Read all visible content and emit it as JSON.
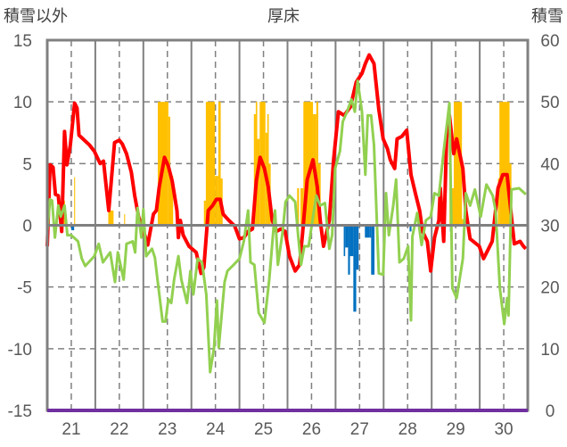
{
  "chart_data": {
    "type": "line",
    "title": "厚床",
    "ylabel": "積雪以外",
    "y2label": "積雪",
    "ylim": [
      -15,
      15
    ],
    "y2lim": [
      0,
      60
    ],
    "xlim": [
      21,
      31
    ],
    "yticks": [
      "15",
      "10",
      "5",
      "0",
      "-5",
      "-10",
      "-15"
    ],
    "y2ticks": [
      "60",
      "50",
      "40",
      "30",
      "20",
      "10",
      "0"
    ],
    "xticks": [
      "21",
      "22",
      "23",
      "24",
      "25",
      "26",
      "27",
      "28",
      "29",
      "30"
    ],
    "grid": true,
    "colors": {
      "red": "#FF0000",
      "green": "#92D050",
      "orange": "#FFC000",
      "blue": "#0070C0",
      "purple": "#7030A0",
      "grid": "#808080"
    },
    "series": [
      {
        "name": "red",
        "axis": "left",
        "color": "#FF0000",
        "x": [
          21.0,
          21.06,
          21.12,
          21.17,
          21.23,
          21.3,
          21.36,
          21.41,
          21.48,
          21.57,
          21.62,
          21.66,
          21.88,
          21.98,
          22.1,
          22.17,
          22.28,
          22.4,
          22.5,
          22.56,
          22.65,
          22.75,
          22.82,
          22.9,
          23.03,
          23.09,
          23.21,
          23.27,
          23.33,
          23.44,
          23.52,
          23.6,
          23.7,
          23.73,
          23.77,
          23.83,
          23.95,
          24.1,
          24.2,
          24.26,
          24.35,
          24.44,
          24.52,
          24.6,
          24.66,
          24.78,
          24.9,
          25.0,
          25.09,
          25.18,
          25.27,
          25.35,
          25.43,
          25.52,
          25.6,
          25.68,
          25.77,
          25.86,
          25.95,
          26.04,
          26.16,
          26.25,
          26.31,
          26.41,
          26.53,
          26.62,
          26.68,
          26.75,
          26.87,
          26.96,
          27.06,
          27.18,
          27.31,
          27.43,
          27.55,
          27.62,
          27.7,
          27.8,
          27.9,
          27.99,
          28.08,
          28.14,
          28.23,
          28.28,
          28.38,
          28.48,
          28.57,
          28.66,
          28.75,
          28.81,
          28.91,
          28.98,
          29.06,
          29.15,
          29.18,
          29.25,
          29.31,
          29.37,
          29.46,
          29.52,
          29.65,
          29.71,
          29.8,
          29.99,
          30.08,
          30.17,
          30.26,
          30.38,
          30.48,
          30.57,
          30.66,
          30.72,
          30.84,
          30.91,
          30.96
        ],
        "y": [
          -1.7,
          4.9,
          4.7,
          2.5,
          2.4,
          -0.5,
          7.6,
          4.9,
          6.5,
          9.9,
          9.5,
          7.3,
          6.5,
          6.0,
          5.0,
          5.2,
          1.2,
          6.7,
          6.9,
          6.6,
          5.8,
          4.3,
          2.4,
          0.7,
          -0.8,
          -1.6,
          0.9,
          1.2,
          3.1,
          5.5,
          4.8,
          3.6,
          1.2,
          -1.0,
          0.4,
          -0.8,
          -1.7,
          -2.2,
          -3.9,
          -3.4,
          1.2,
          1.6,
          2.1,
          2.1,
          0.9,
          0.4,
          -0.05,
          -1.1,
          -1.0,
          -0.5,
          -0.3,
          3.6,
          5.5,
          4.6,
          3.1,
          0.4,
          -0.5,
          -0.3,
          -0.5,
          -2.5,
          -3.7,
          -3.2,
          -0.8,
          3.7,
          5.3,
          3.1,
          0.4,
          -1.7,
          0.4,
          5.3,
          9.2,
          8.9,
          9.6,
          11.6,
          12.3,
          13.1,
          13.8,
          13.1,
          9.4,
          7.0,
          6.2,
          5.3,
          4.6,
          7.0,
          7.2,
          7.7,
          4.1,
          2.6,
          1.2,
          -0.5,
          -1.3,
          -3.7,
          -1.0,
          0.4,
          3.0,
          -1.3,
          7.0,
          8.9,
          5.8,
          7.0,
          4.6,
          1.2,
          -1.1,
          -1.7,
          -2.7,
          -2.0,
          -1.3,
          3.0,
          4.1,
          4.1,
          0.7,
          -1.5,
          -1.3,
          -1.7,
          -1.9
        ]
      },
      {
        "name": "green",
        "axis": "left",
        "color": "#92D050",
        "x": [
          21.0,
          21.06,
          21.1,
          21.16,
          21.23,
          21.28,
          21.36,
          21.42,
          21.5,
          21.64,
          21.72,
          21.79,
          21.98,
          22.07,
          22.16,
          22.31,
          22.41,
          22.47,
          22.59,
          22.65,
          22.78,
          22.83,
          22.88,
          22.96,
          23.0,
          23.06,
          23.18,
          23.24,
          23.3,
          23.4,
          23.46,
          23.52,
          23.58,
          23.64,
          23.73,
          23.79,
          23.91,
          23.98,
          24.04,
          24.13,
          24.22,
          24.31,
          24.39,
          24.47,
          24.53,
          24.57,
          24.69,
          24.75,
          24.88,
          25.0,
          25.09,
          25.18,
          25.23,
          25.31,
          25.4,
          25.52,
          25.62,
          25.74,
          25.8,
          25.9,
          25.96,
          26.04,
          26.16,
          26.22,
          26.28,
          26.35,
          26.44,
          26.53,
          26.6,
          26.68,
          26.78,
          26.87,
          26.93,
          26.99,
          27.09,
          27.15,
          27.24,
          27.33,
          27.4,
          27.46,
          27.55,
          27.62,
          27.67,
          27.74,
          27.8,
          27.9,
          27.99,
          28.05,
          28.11,
          28.2,
          28.26,
          28.33,
          28.42,
          28.51,
          28.57,
          28.6,
          28.7,
          28.79,
          28.88,
          28.98,
          29.06,
          29.15,
          29.25,
          29.37,
          29.43,
          29.52,
          29.65,
          29.71,
          29.8,
          29.9,
          30.02,
          30.14,
          30.27,
          30.33,
          30.42,
          30.51,
          30.57,
          30.6,
          30.66,
          30.82,
          30.96
        ],
        "y": [
          -0.5,
          2.1,
          2.0,
          -1.0,
          1.6,
          0.7,
          1.6,
          -0.8,
          -0.8,
          -1.3,
          -2.7,
          -3.3,
          -2.5,
          -1.5,
          -3.0,
          -2.2,
          -4.6,
          -2.2,
          -4.4,
          -1.5,
          -1.3,
          -2.2,
          1.4,
          -1.0,
          1.3,
          -2.5,
          -1.9,
          -2.6,
          -4.6,
          -7.8,
          -7.8,
          -6.0,
          -6.3,
          -4.4,
          -2.5,
          -4.4,
          -6.3,
          -3.7,
          -5.6,
          -2.7,
          -3.0,
          -5.6,
          -11.9,
          -10.0,
          -6.1,
          -9.9,
          -4.6,
          -3.7,
          -3.2,
          -2.7,
          -1.3,
          1.2,
          -3.0,
          -3.2,
          -7.1,
          -7.9,
          -4.4,
          1.2,
          -3.2,
          -0.5,
          1.9,
          2.4,
          1.9,
          -0.8,
          -3.2,
          -1.7,
          -1.7,
          0.7,
          2.4,
          1.6,
          1.8,
          -1.9,
          -0.8,
          4.6,
          6.0,
          8.4,
          9.2,
          10.2,
          9.2,
          11.7,
          9.2,
          4.1,
          8.9,
          8.9,
          6.5,
          -3.9,
          -4.0,
          2.6,
          -0.8,
          1.6,
          3.7,
          -3.0,
          -2.7,
          -1.7,
          -7.7,
          -0.9,
          1.0,
          -1.6,
          0.4,
          0.7,
          2.6,
          2.4,
          6.0,
          9.9,
          -5.1,
          -5.9,
          -2.7,
          2.6,
          1.6,
          2.9,
          0.7,
          3.3,
          2.4,
          1.2,
          -5.1,
          -8.0,
          -5.9,
          -7.3,
          2.9,
          3.0,
          2.5
        ]
      },
      {
        "name": "purple",
        "axis": "right",
        "color": "#7030A0",
        "x": [
          21,
          31
        ],
        "y": [
          0,
          0
        ]
      }
    ],
    "bars": [
      {
        "name": "orange",
        "axis": "left",
        "color": "#FFC000",
        "segments": [
          [
            21.33,
            21.37,
            2.0
          ],
          [
            21.56,
            21.58,
            3.9
          ],
          [
            22.27,
            22.38,
            1.2
          ],
          [
            22.6,
            22.62,
            0.9
          ],
          [
            23.3,
            23.52,
            10
          ],
          [
            23.52,
            23.56,
            8.8
          ],
          [
            23.56,
            23.62,
            4.0
          ],
          [
            24.26,
            24.3,
            2.0
          ],
          [
            24.3,
            24.49,
            10
          ],
          [
            24.49,
            24.56,
            4.0
          ],
          [
            24.56,
            24.61,
            10
          ],
          [
            24.61,
            24.65,
            3.8
          ],
          [
            25.3,
            25.34,
            9.0
          ],
          [
            25.34,
            25.37,
            10
          ],
          [
            25.37,
            25.42,
            7.0
          ],
          [
            25.42,
            25.54,
            10
          ],
          [
            25.54,
            25.58,
            7.5
          ],
          [
            25.58,
            25.61,
            9.0
          ],
          [
            25.61,
            25.65,
            5.0
          ],
          [
            26.2,
            26.24,
            3.0
          ],
          [
            26.27,
            26.33,
            3.0
          ],
          [
            26.33,
            26.53,
            10
          ],
          [
            26.53,
            26.6,
            9.0
          ],
          [
            26.6,
            26.64,
            10
          ],
          [
            26.64,
            26.69,
            5.0
          ],
          [
            29.37,
            29.46,
            3.0
          ],
          [
            29.46,
            29.63,
            10
          ],
          [
            29.63,
            29.68,
            0.5
          ],
          [
            30.38,
            30.41,
            3.8
          ],
          [
            30.41,
            30.62,
            10
          ],
          [
            30.62,
            30.66,
            5.0
          ]
        ]
      },
      {
        "name": "blue",
        "axis": "left",
        "color": "#0070C0",
        "segments": [
          [
            21.5,
            21.56,
            -0.4
          ],
          [
            27.17,
            27.2,
            -2.5
          ],
          [
            27.2,
            27.26,
            -1.8
          ],
          [
            27.26,
            27.3,
            -4.0
          ],
          [
            27.3,
            27.37,
            -2.5
          ],
          [
            27.37,
            27.43,
            -7.0
          ],
          [
            27.43,
            27.48,
            -3.6
          ],
          [
            27.61,
            27.7,
            -1.0
          ],
          [
            27.7,
            27.74,
            -1.0
          ],
          [
            27.74,
            27.81,
            -4.0
          ],
          [
            28.54,
            28.58,
            -0.5
          ],
          [
            29.38,
            29.4,
            -0.5
          ]
        ]
      }
    ]
  }
}
